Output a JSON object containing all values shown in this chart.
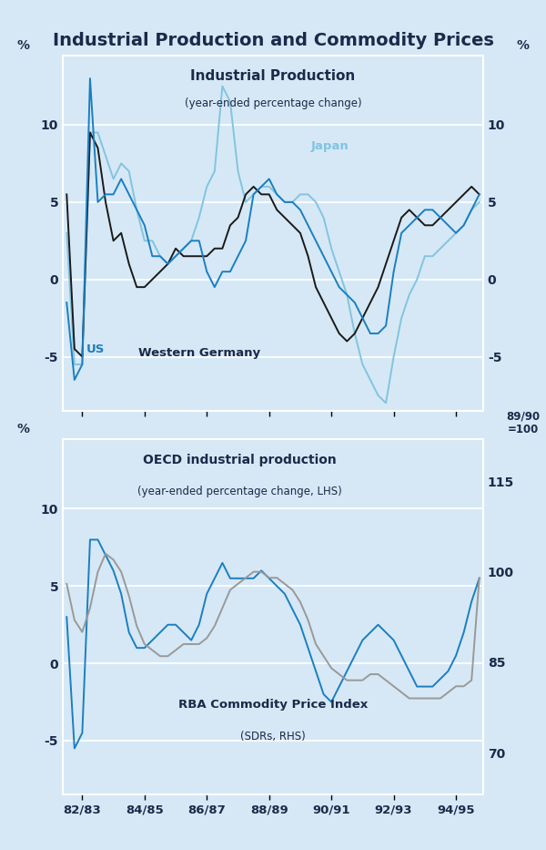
{
  "title": "Industrial Production and Commodity Prices",
  "bg_color": "#d6e8f5",
  "top_chart": {
    "title": "Industrial Production",
    "subtitle": "(year-ended percentage change)",
    "ylabel_left": "%",
    "ylabel_right": "%",
    "ylim": [
      -8.5,
      14.5
    ],
    "yticks": [
      -5,
      0,
      5,
      10
    ],
    "us": [
      -1.5,
      -6.5,
      -5.5,
      13.0,
      5.0,
      5.5,
      5.5,
      6.5,
      5.5,
      4.5,
      3.5,
      1.5,
      1.5,
      1.0,
      1.5,
      2.0,
      2.5,
      2.5,
      0.5,
      -0.5,
      0.5,
      0.5,
      1.5,
      2.5,
      5.5,
      6.0,
      6.5,
      5.5,
      5.0,
      5.0,
      4.5,
      3.5,
      2.5,
      1.5,
      0.5,
      -0.5,
      -1.0,
      -1.5,
      -2.5,
      -3.5,
      -3.5,
      -3.0,
      0.5,
      3.0,
      3.5,
      4.0,
      4.5,
      4.5,
      4.0,
      3.5,
      3.0,
      3.5,
      4.5,
      5.5
    ],
    "japan": [
      3.0,
      -5.5,
      -5.5,
      9.5,
      9.5,
      8.0,
      6.5,
      7.5,
      7.0,
      4.5,
      2.5,
      2.5,
      1.5,
      1.0,
      1.5,
      2.0,
      2.5,
      4.0,
      6.0,
      7.0,
      12.5,
      11.5,
      7.0,
      5.0,
      5.5,
      6.0,
      6.0,
      5.5,
      5.0,
      5.0,
      5.5,
      5.5,
      5.0,
      4.0,
      2.0,
      0.5,
      -1.0,
      -3.5,
      -5.5,
      -6.5,
      -7.5,
      -8.0,
      -5.0,
      -2.5,
      -1.0,
      0.0,
      1.5,
      1.5,
      2.0,
      2.5,
      3.0,
      3.5,
      4.5,
      5.0
    ],
    "west_germany": [
      5.5,
      -4.5,
      -5.0,
      9.5,
      8.5,
      5.0,
      2.5,
      3.0,
      1.0,
      -0.5,
      -0.5,
      0.0,
      0.5,
      1.0,
      2.0,
      1.5,
      1.5,
      1.5,
      1.5,
      2.0,
      2.0,
      3.5,
      4.0,
      5.5,
      6.0,
      5.5,
      5.5,
      4.5,
      4.0,
      3.5,
      3.0,
      1.5,
      -0.5,
      -1.5,
      -2.5,
      -3.5,
      -4.0,
      -3.5,
      -2.5,
      -1.5,
      -0.5,
      1.0,
      2.5,
      4.0,
      4.5,
      4.0,
      3.5,
      3.5,
      4.0,
      4.5,
      5.0,
      5.5,
      6.0,
      5.5
    ],
    "colors": {
      "us": "#1a7fc1",
      "japan": "#82c4e0",
      "west_germany": "#1a1a1a"
    }
  },
  "bottom_chart": {
    "title": "OECD industrial production",
    "subtitle": "(year-ended percentage change, LHS)",
    "label2": "RBA Commodity Price Index",
    "label2_sub": "(SDRs, RHS)",
    "ylabel_left": "%",
    "ylabel_right": "89/90\n=100",
    "ylim_left": [
      -8.5,
      14.5
    ],
    "ylim_right": [
      63,
      122
    ],
    "yticks_left": [
      -5,
      0,
      5,
      10
    ],
    "yticks_right": [
      70,
      85,
      100,
      115
    ],
    "oecd": [
      3.0,
      -5.5,
      -4.5,
      8.0,
      8.0,
      7.0,
      6.0,
      4.5,
      2.0,
      1.0,
      1.0,
      1.5,
      2.0,
      2.5,
      2.5,
      2.0,
      1.5,
      2.5,
      4.5,
      5.5,
      6.5,
      5.5,
      5.5,
      5.5,
      5.5,
      6.0,
      5.5,
      5.0,
      4.5,
      3.5,
      2.5,
      1.0,
      -0.5,
      -2.0,
      -2.5,
      -1.5,
      -0.5,
      0.5,
      1.5,
      2.0,
      2.5,
      2.0,
      1.5,
      0.5,
      -0.5,
      -1.5,
      -1.5,
      -1.5,
      -1.0,
      -0.5,
      0.5,
      2.0,
      4.0,
      5.5
    ],
    "rba": [
      98,
      92,
      90,
      94,
      100,
      103,
      102,
      100,
      96,
      91,
      88,
      87,
      86,
      86,
      87,
      88,
      88,
      88,
      89,
      91,
      94,
      97,
      98,
      99,
      100,
      100,
      99,
      99,
      98,
      97,
      95,
      92,
      88,
      86,
      84,
      83,
      82,
      82,
      82,
      83,
      83,
      82,
      81,
      80,
      79,
      79,
      79,
      79,
      79,
      80,
      81,
      81,
      82,
      99
    ],
    "colors": {
      "oecd": "#1a7fc1",
      "rba": "#999999"
    }
  },
  "x_tick_labels": [
    "82/83",
    "84/85",
    "86/87",
    "88/89",
    "90/91",
    "92/93",
    "94/95"
  ],
  "xtick_pos": [
    2,
    10,
    18,
    26,
    34,
    42,
    50
  ],
  "n_points": 54
}
